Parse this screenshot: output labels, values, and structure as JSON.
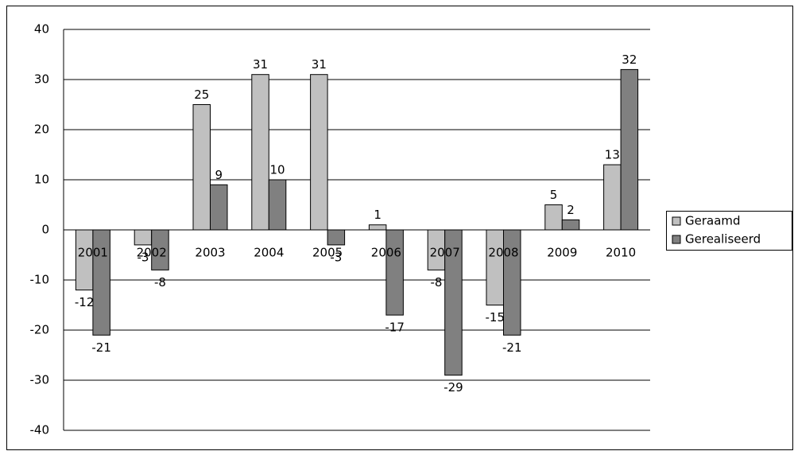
{
  "chart_data": {
    "type": "bar",
    "categories": [
      "2001",
      "2002",
      "2003",
      "2004",
      "2005",
      "2006",
      "2007",
      "2008",
      "2009",
      "2010"
    ],
    "series": [
      {
        "name": "Geraamd",
        "color": "#c0c0c0",
        "values": [
          -12,
          -3,
          25,
          31,
          31,
          1,
          -8,
          -15,
          5,
          13
        ]
      },
      {
        "name": "Gerealiseerd",
        "color": "#808080",
        "values": [
          -21,
          -8,
          9,
          10,
          -3,
          -17,
          -29,
          -21,
          2,
          32
        ]
      }
    ],
    "ylim": [
      -40,
      40
    ],
    "yticks": [
      -40,
      -30,
      -20,
      -10,
      0,
      10,
      20,
      30,
      40
    ],
    "grid": true,
    "legend": "right"
  }
}
